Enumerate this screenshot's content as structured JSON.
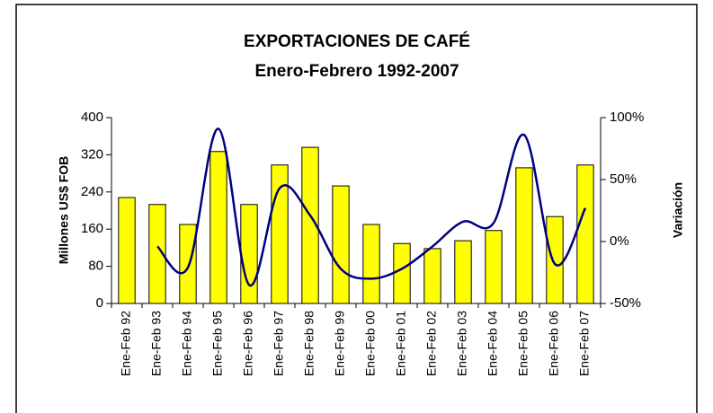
{
  "chart_data": {
    "type": "bar_line",
    "title": "EXPORTACIONES DE CAFÉ",
    "subtitle": "Enero-Febrero 1992-2007",
    "ylabel": "Millones US$ FOB",
    "y2label": "Variación",
    "categories": [
      "Ene-Feb 92",
      "Ene-Feb 93",
      "Ene-Feb 94",
      "Ene-Feb 95",
      "Ene-Feb 96",
      "Ene-Feb 97",
      "Ene-Feb 98",
      "Ene-Feb 99",
      "Ene-Feb 00",
      "Ene-Feb 01",
      "Ene-Feb 02",
      "Ene-Feb 03",
      "Ene-Feb 04",
      "Ene-Feb 05",
      "Ene-Feb 06",
      "Ene-Feb 07"
    ],
    "series": [
      {
        "type": "bar",
        "color": "#ffff00",
        "values": [
          228,
          213,
          170,
          327,
          213,
          298,
          336,
          253,
          170,
          129,
          118,
          135,
          157,
          292,
          187,
          298
        ]
      },
      {
        "type": "line",
        "axis": "y2",
        "color": "#000080",
        "values": [
          null,
          -4,
          -21,
          91,
          -35,
          43,
          21,
          -22,
          -30,
          -22,
          -4,
          16,
          15,
          86,
          -18,
          27
        ]
      }
    ],
    "ylim": [
      0,
      400
    ],
    "yticks": [
      0,
      80,
      160,
      240,
      320,
      400
    ],
    "y2lim": [
      -50,
      100
    ],
    "y2ticks": [
      {
        "value": -50,
        "label": "-50%"
      },
      {
        "value": 0,
        "label": "0%"
      },
      {
        "value": 50,
        "label": "50%"
      },
      {
        "value": 100,
        "label": "100%"
      }
    ]
  }
}
